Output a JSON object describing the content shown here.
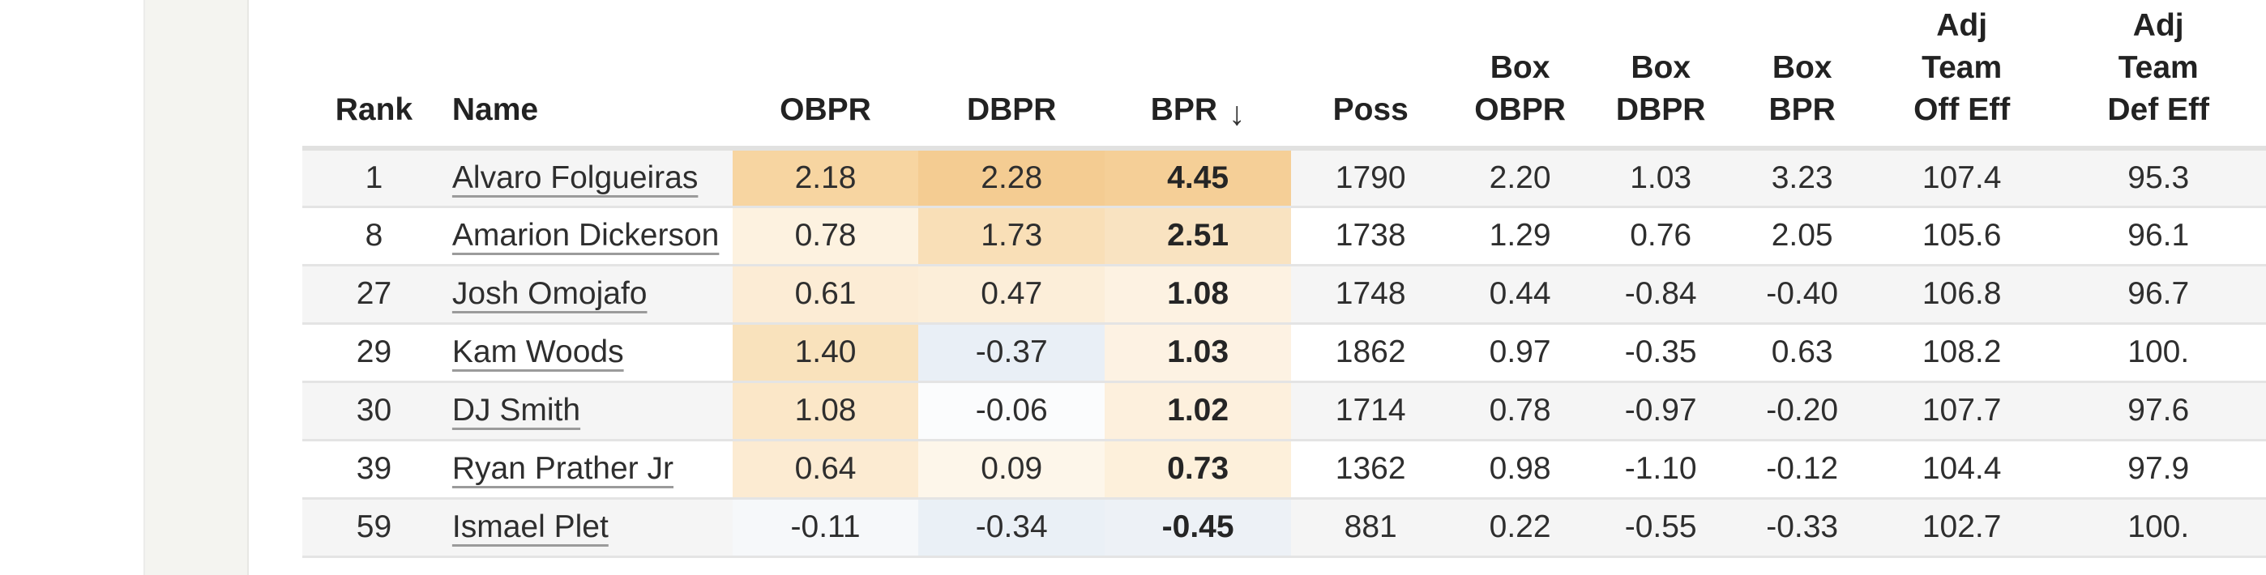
{
  "table": {
    "columns": [
      {
        "key": "rank",
        "label": "Rank"
      },
      {
        "key": "name",
        "label": "Name"
      },
      {
        "key": "obpr",
        "label": "OBPR"
      },
      {
        "key": "dbpr",
        "label": "DBPR"
      },
      {
        "key": "bpr",
        "label": "BPR"
      },
      {
        "key": "poss",
        "label": "Poss"
      },
      {
        "key": "box_obpr",
        "label": "Box\nOBPR"
      },
      {
        "key": "box_dbpr",
        "label": "Box\nDBPR"
      },
      {
        "key": "box_bpr",
        "label": "Box\nBPR"
      },
      {
        "key": "adj_team_off_eff",
        "label": "Adj\nTeam\nOff Eff"
      },
      {
        "key": "adj_team_def_eff",
        "label": "Adj\nTeam\nDef Eff"
      }
    ],
    "sort": {
      "column": "bpr",
      "direction": "desc",
      "icon": "↓"
    },
    "rows": [
      {
        "rank": "1",
        "name": "Alvaro Folgueiras",
        "obpr": "2.18",
        "dbpr": "2.28",
        "bpr": "4.45",
        "poss": "1790",
        "box_obpr": "2.20",
        "box_dbpr": "1.03",
        "box_bpr": "3.23",
        "adj_team_off_eff": "107.4",
        "adj_team_def_eff": "95.3",
        "colors": {
          "obpr": "#f7d5a1",
          "dbpr": "#f4cc92",
          "bpr": "#f5cf97"
        }
      },
      {
        "rank": "8",
        "name": "Amarion Dickerson",
        "obpr": "0.78",
        "dbpr": "1.73",
        "bpr": "2.51",
        "poss": "1738",
        "box_obpr": "1.29",
        "box_dbpr": "0.76",
        "box_bpr": "2.05",
        "adj_team_off_eff": "105.6",
        "adj_team_def_eff": "96.1",
        "colors": {
          "obpr": "#fdf2e0",
          "dbpr": "#f9dfb7",
          "bpr": "#f9e3c1"
        }
      },
      {
        "rank": "27",
        "name": "Josh Omojafo",
        "obpr": "0.61",
        "dbpr": "0.47",
        "bpr": "1.08",
        "poss": "1748",
        "box_obpr": "0.44",
        "box_dbpr": "-0.84",
        "box_bpr": "-0.40",
        "adj_team_off_eff": "106.8",
        "adj_team_def_eff": "96.7",
        "colors": {
          "obpr": "#fcecd5",
          "dbpr": "#fceed9",
          "bpr": "#fdf2e2"
        }
      },
      {
        "rank": "29",
        "name": "Kam Woods",
        "obpr": "1.40",
        "dbpr": "-0.37",
        "bpr": "1.03",
        "poss": "1862",
        "box_obpr": "0.97",
        "box_dbpr": "-0.35",
        "box_bpr": "0.63",
        "adj_team_off_eff": "108.2",
        "adj_team_def_eff": "100.",
        "colors": {
          "obpr": "#f9e2bc",
          "dbpr": "#e9eff6",
          "bpr": "#fdf2e3"
        }
      },
      {
        "rank": "30",
        "name": "DJ Smith",
        "obpr": "1.08",
        "dbpr": "-0.06",
        "bpr": "1.02",
        "poss": "1714",
        "box_obpr": "0.78",
        "box_dbpr": "-0.97",
        "box_bpr": "-0.20",
        "adj_team_off_eff": "107.7",
        "adj_team_def_eff": "97.6",
        "colors": {
          "obpr": "#fbe7c8",
          "dbpr": "#fbfcfd",
          "bpr": "#fdf0dd"
        }
      },
      {
        "rank": "39",
        "name": "Ryan Prather Jr",
        "obpr": "0.64",
        "dbpr": "0.09",
        "bpr": "0.73",
        "poss": "1362",
        "box_obpr": "0.98",
        "box_dbpr": "-1.10",
        "box_bpr": "-0.12",
        "adj_team_off_eff": "104.4",
        "adj_team_def_eff": "97.9",
        "colors": {
          "obpr": "#fcebd2",
          "dbpr": "#fdf6ea",
          "bpr": "#fdf0db"
        }
      },
      {
        "rank": "59",
        "name": "Ismael Plet",
        "obpr": "-0.11",
        "dbpr": "-0.34",
        "bpr": "-0.45",
        "poss": "881",
        "box_obpr": "0.22",
        "box_dbpr": "-0.55",
        "box_bpr": "-0.33",
        "adj_team_off_eff": "102.7",
        "adj_team_def_eff": "100.",
        "colors": {
          "obpr": "#f6f8fa",
          "dbpr": "#eaf0f6",
          "bpr": "#edf1f6"
        }
      }
    ]
  }
}
